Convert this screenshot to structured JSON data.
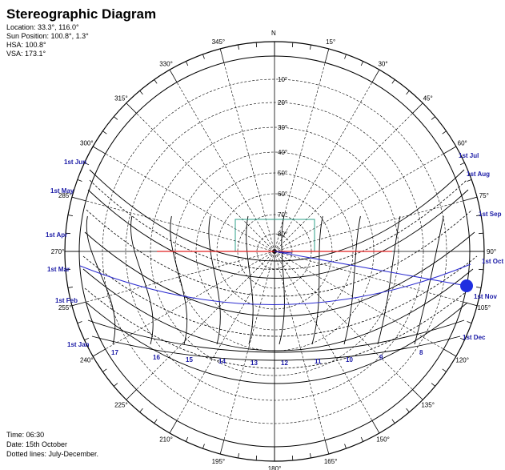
{
  "header": {
    "title": "Stereographic Diagram",
    "location": "Location: 33.3°, 116.0°",
    "sun_position": "Sun Position: 100.8°, 1.3°",
    "hsa": "HSA: 100.8°",
    "vsa": "VSA: 173.1°"
  },
  "footer": {
    "time": "Time: 06:30",
    "date": "Date: 15th October",
    "dotted": "Dotted lines: July-December."
  },
  "north_label": "N",
  "azimuth_labels": [
    "15°",
    "30°",
    "45°",
    "60°",
    "75°",
    "90°",
    "105°",
    "120°",
    "135°",
    "150°",
    "165°",
    "180°",
    "195°",
    "210°",
    "225°",
    "240°",
    "255°",
    "270°",
    "285°",
    "300°",
    "315°",
    "330°",
    "345°"
  ],
  "altitude_labels": [
    "10°",
    "20°",
    "30°",
    "40°",
    "50°",
    "60°",
    "70°",
    "80°"
  ],
  "month_labels_left": [
    "1st Jun",
    "1st May",
    "1st Apr",
    "1st Mar",
    "1st Feb",
    "1st Jan"
  ],
  "month_labels_right": [
    "1st Jul",
    "1st Aug",
    "1st Sep",
    "1st Oct",
    "1st Nov",
    "1st Dec"
  ],
  "hour_labels": [
    "17",
    "16",
    "15",
    "14",
    "13",
    "12",
    "11",
    "10",
    "9",
    "8"
  ],
  "colors": {
    "sun_marker": "#1f2fe0",
    "sun_line": "#2a2ad0",
    "hsa_line": "#e02020",
    "shade_box": "#2ea08a",
    "month_text": "#1a1aa6"
  }
}
